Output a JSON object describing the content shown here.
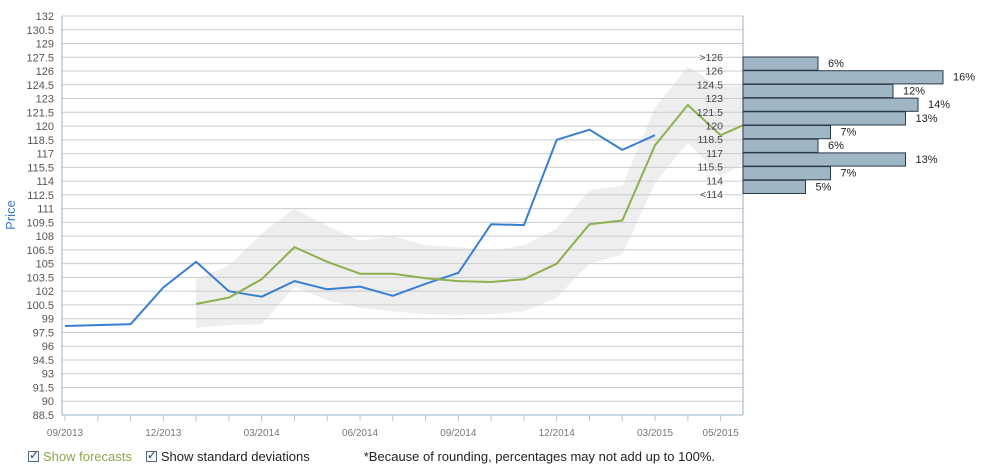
{
  "chart_data": {
    "type": "line",
    "ylabel": "Price",
    "ylim": [
      88.5,
      132
    ],
    "y_ticks": [
      "88.5",
      "90",
      "91.5",
      "93",
      "94.5",
      "96",
      "97.5",
      "99",
      "100.5",
      "102",
      "103.5",
      "105",
      "106.5",
      "108",
      "109.5",
      "111",
      "112.5",
      "114",
      "115.5",
      "117",
      "118.5",
      "120",
      "121.5",
      "123",
      "124.5",
      "126",
      "127.5",
      "129",
      "130.5",
      "132"
    ],
    "x_ticks": [
      "09/2013",
      "12/2013",
      "03/2014",
      "06/2014",
      "09/2014",
      "12/2014",
      "03/2015",
      "05/2015"
    ],
    "grid": true,
    "series": [
      {
        "name": "Price",
        "color": "#3a7fcf",
        "points": [
          [
            "09/2013",
            98.2
          ],
          [
            "11/2013",
            98.4
          ],
          [
            "12/2013",
            102.4
          ],
          [
            "01/2014",
            105.2
          ],
          [
            "02/2014",
            102.0
          ],
          [
            "03/2014",
            101.4
          ],
          [
            "04/2014",
            103.1
          ],
          [
            "05/2014",
            102.2
          ],
          [
            "06/2014",
            102.5
          ],
          [
            "07/2014",
            101.5
          ],
          [
            "08/2014",
            102.8
          ],
          [
            "09/2014",
            104.0
          ],
          [
            "10/2014",
            109.3
          ],
          [
            "11/2014",
            109.2
          ],
          [
            "12/2014",
            118.5
          ],
          [
            "01/2015",
            119.6
          ],
          [
            "02/2015",
            117.4
          ],
          [
            "03/2015",
            119.0
          ]
        ]
      },
      {
        "name": "Forecast",
        "color": "#8db04f",
        "points": [
          [
            "01/2014",
            100.6
          ],
          [
            "02/2014",
            101.3
          ],
          [
            "03/2014",
            103.3
          ],
          [
            "04/2014",
            106.8
          ],
          [
            "05/2014",
            105.2
          ],
          [
            "06/2014",
            103.9
          ],
          [
            "07/2014",
            103.9
          ],
          [
            "08/2014",
            103.4
          ],
          [
            "09/2014",
            103.1
          ],
          [
            "10/2014",
            103.0
          ],
          [
            "11/2014",
            103.3
          ],
          [
            "12/2014",
            105.0
          ],
          [
            "01/2015",
            109.3
          ],
          [
            "02/2015",
            109.7
          ],
          [
            "03/2015",
            117.9
          ],
          [
            "04/2015",
            122.3
          ],
          [
            "05/2015",
            119.0
          ],
          [
            "06/2015",
            120.6
          ]
        ]
      }
    ],
    "std_band": [
      [
        "01/2014",
        103.3,
        98.0
      ],
      [
        "02/2014",
        104.8,
        98.3
      ],
      [
        "03/2014",
        108.3,
        98.4
      ],
      [
        "04/2014",
        111.0,
        102.5
      ],
      [
        "05/2014",
        109.1,
        101.0
      ],
      [
        "06/2014",
        107.5,
        100.2
      ],
      [
        "07/2014",
        108.0,
        99.8
      ],
      [
        "08/2014",
        107.0,
        99.5
      ],
      [
        "09/2014",
        106.8,
        99.4
      ],
      [
        "10/2014",
        106.4,
        99.5
      ],
      [
        "11/2014",
        107.0,
        99.8
      ],
      [
        "12/2014",
        108.8,
        101.3
      ],
      [
        "01/2015",
        113.0,
        105.0
      ],
      [
        "02/2015",
        113.5,
        106.0
      ],
      [
        "03/2015",
        122.0,
        113.8
      ],
      [
        "04/2015",
        126.5,
        118.2
      ],
      [
        "05/2015",
        124.2,
        114.5
      ],
      [
        "06/2015",
        124.5,
        116.5
      ]
    ],
    "distribution": [
      {
        "label": ">126",
        "percent": 6,
        "percent_label": "6%"
      },
      {
        "label": "126",
        "percent": 16,
        "percent_label": "16%"
      },
      {
        "label": "124.5",
        "percent": 12,
        "percent_label": "12%"
      },
      {
        "label": "123",
        "percent": 14,
        "percent_label": "14%"
      },
      {
        "label": "121.5",
        "percent": 13,
        "percent_label": "13%"
      },
      {
        "label": "120",
        "percent": 7,
        "percent_label": "7%"
      },
      {
        "label": "118.5",
        "percent": 6,
        "percent_label": "6%"
      },
      {
        "label": "117",
        "percent": 13,
        "percent_label": "13%"
      },
      {
        "label": "115.5",
        "percent": 7,
        "percent_label": "7%"
      },
      {
        "label": "114",
        "percent": 5,
        "percent_label": "5%"
      },
      {
        "label": "<114",
        "percent": 0,
        "percent_label": ""
      }
    ],
    "colors": {
      "grid": "#c8ccd2",
      "axis": "#9ab0c8",
      "band": "#eeeeee",
      "bar_fill": "#9fb6c5",
      "bar_stroke": "#2b3a48"
    }
  },
  "controls": {
    "show_forecasts_label": "Show forecasts",
    "show_forecasts_checked": true,
    "show_std_label": "Show standard deviations",
    "show_std_checked": true,
    "footnote": "*Because of rounding, percentages may not add up to 100%."
  }
}
